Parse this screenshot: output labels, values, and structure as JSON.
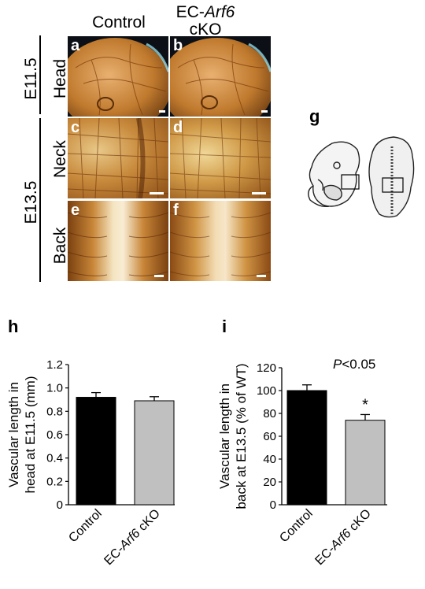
{
  "column_headers": {
    "control": "Control",
    "cko_prefix": "EC-",
    "cko_gene": "Arf6",
    "cko_suffix": "cKO"
  },
  "stage_labels": {
    "e115": "E11.5",
    "e135": "E13.5"
  },
  "region_labels": {
    "head": "Head",
    "neck": "Neck",
    "back": "Back"
  },
  "panel_labels": [
    "a",
    "b",
    "c",
    "d",
    "e",
    "f"
  ],
  "schematic_label": "g",
  "chart_data": [
    {
      "panel": "h",
      "type": "bar",
      "categories": [
        "Control",
        "EC-Arf6 cKO"
      ],
      "values": [
        0.92,
        0.89
      ],
      "errors": [
        0.04,
        0.035
      ],
      "ylabel": "Vascular length in head at E11.5 (mm)",
      "ylabel_lines": [
        "Vascular length in",
        "head at E11.5 (mm)"
      ],
      "ylim": [
        0,
        1.2
      ],
      "yticks": [
        "0",
        "0.2",
        "0.4",
        "0.6",
        "0.8",
        "1.0",
        "1.2"
      ],
      "xtick_labels": [
        {
          "pre": "Control",
          "ital": "",
          "post": ""
        },
        {
          "pre": "EC-",
          "ital": "Arf6",
          "post": " cKO"
        }
      ],
      "bar_colors": [
        "#000000",
        "#c0c0c0"
      ]
    },
    {
      "panel": "i",
      "type": "bar",
      "categories": [
        "Control",
        "EC-Arf6 cKO"
      ],
      "values": [
        100,
        74
      ],
      "errors": [
        5,
        5
      ],
      "ylabel": "Vascular length in back at E13.5 (% of WT)",
      "ylabel_lines": [
        "Vascular length in",
        "back at E13.5 (% of WT)"
      ],
      "ylim": [
        0,
        120
      ],
      "yticks": [
        "0",
        "20",
        "40",
        "60",
        "80",
        "100",
        "120"
      ],
      "xtick_labels": [
        {
          "pre": "Control",
          "ital": "",
          "post": ""
        },
        {
          "pre": "EC-",
          "ital": "Arf6",
          "post": " cKO"
        }
      ],
      "bar_colors": [
        "#000000",
        "#c0c0c0"
      ],
      "annotation_p": "<0.05",
      "annotation_p_symbol": "P",
      "significance": "*"
    }
  ]
}
